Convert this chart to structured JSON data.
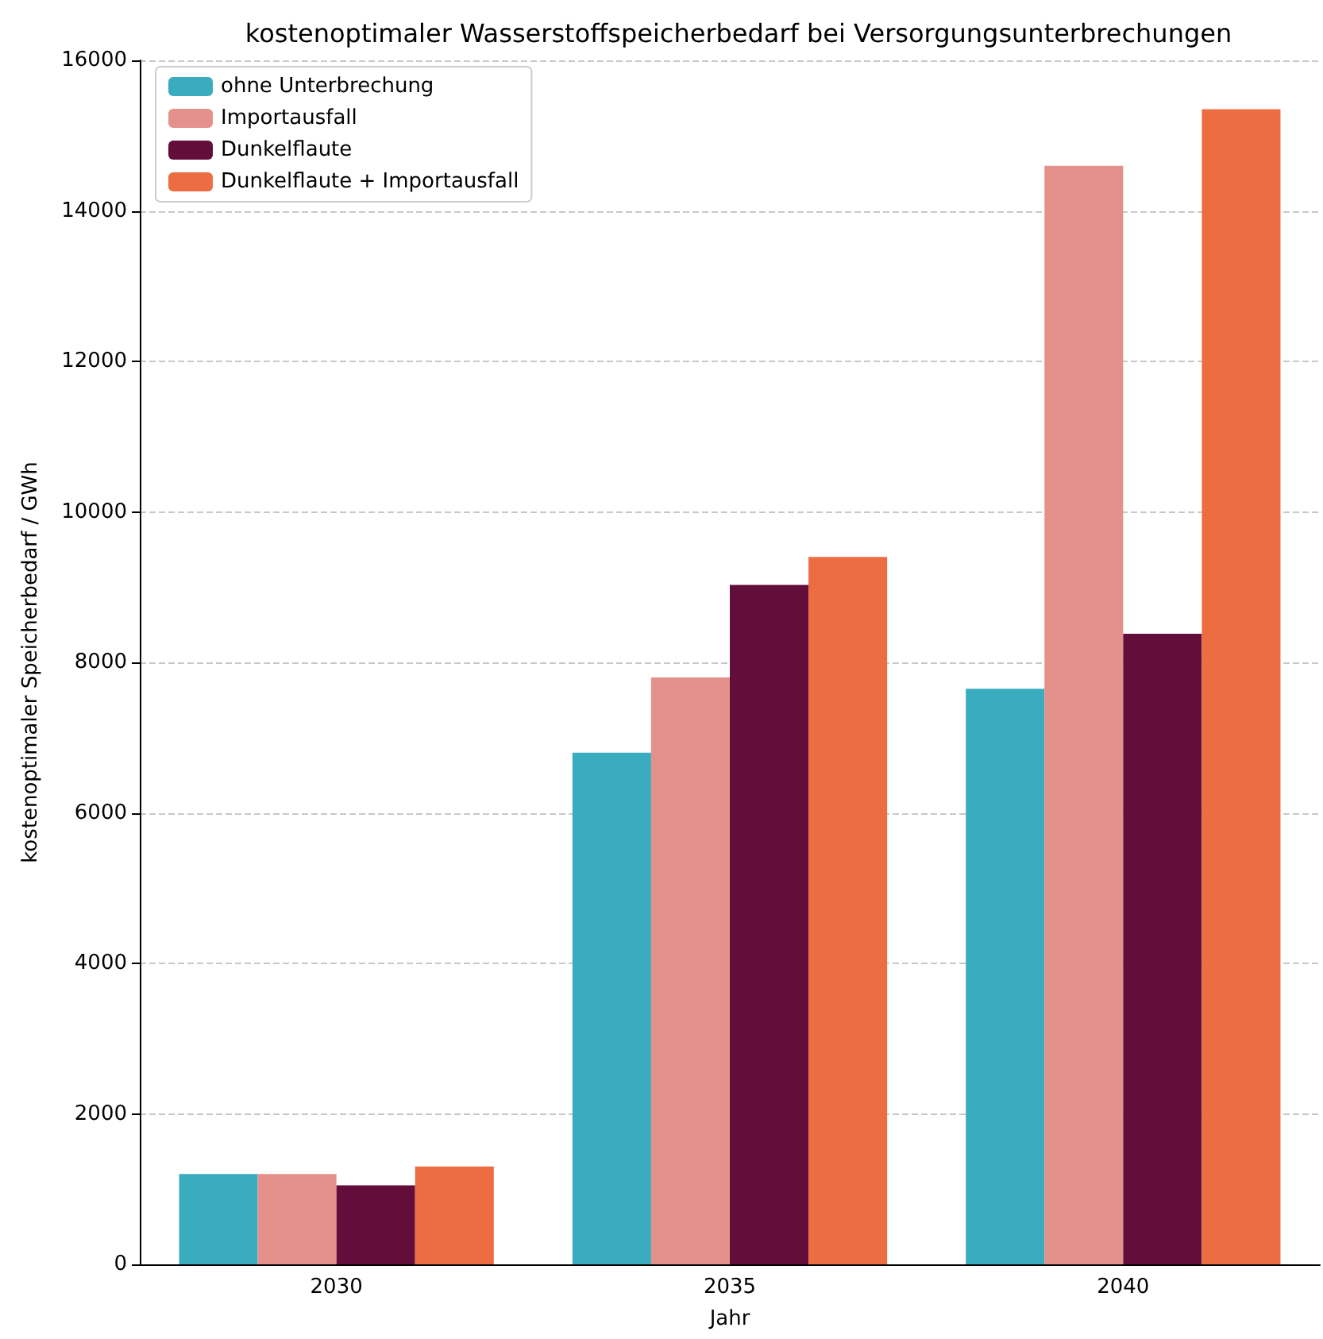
{
  "chart_data": {
    "type": "bar",
    "title": "kostenoptimaler Wasserstoffspeicherbedarf bei Versorgungsunterbrechungen",
    "xlabel": "Jahr",
    "ylabel": "kostenoptimaler Speicherbedarf / GWh",
    "categories": [
      "2030",
      "2035",
      "2040"
    ],
    "series": [
      {
        "name": "ohne Unterbrechung",
        "color": "#3aacbf",
        "values": [
          1200,
          6800,
          7650
        ]
      },
      {
        "name": "Importausfall",
        "color": "#e5918b",
        "values": [
          1200,
          7800,
          14600
        ]
      },
      {
        "name": "Dunkelflaute",
        "color": "#630e3a",
        "values": [
          1050,
          9030,
          8380
        ]
      },
      {
        "name": "Dunkelflaute + Importausfall",
        "color": "#ed6d42",
        "values": [
          1300,
          9400,
          15350
        ]
      }
    ],
    "ylim": [
      0,
      16000
    ],
    "yticks": [
      0,
      2000,
      4000,
      6000,
      8000,
      10000,
      12000,
      14000,
      16000
    ],
    "grid": "y",
    "legend": "top left"
  }
}
